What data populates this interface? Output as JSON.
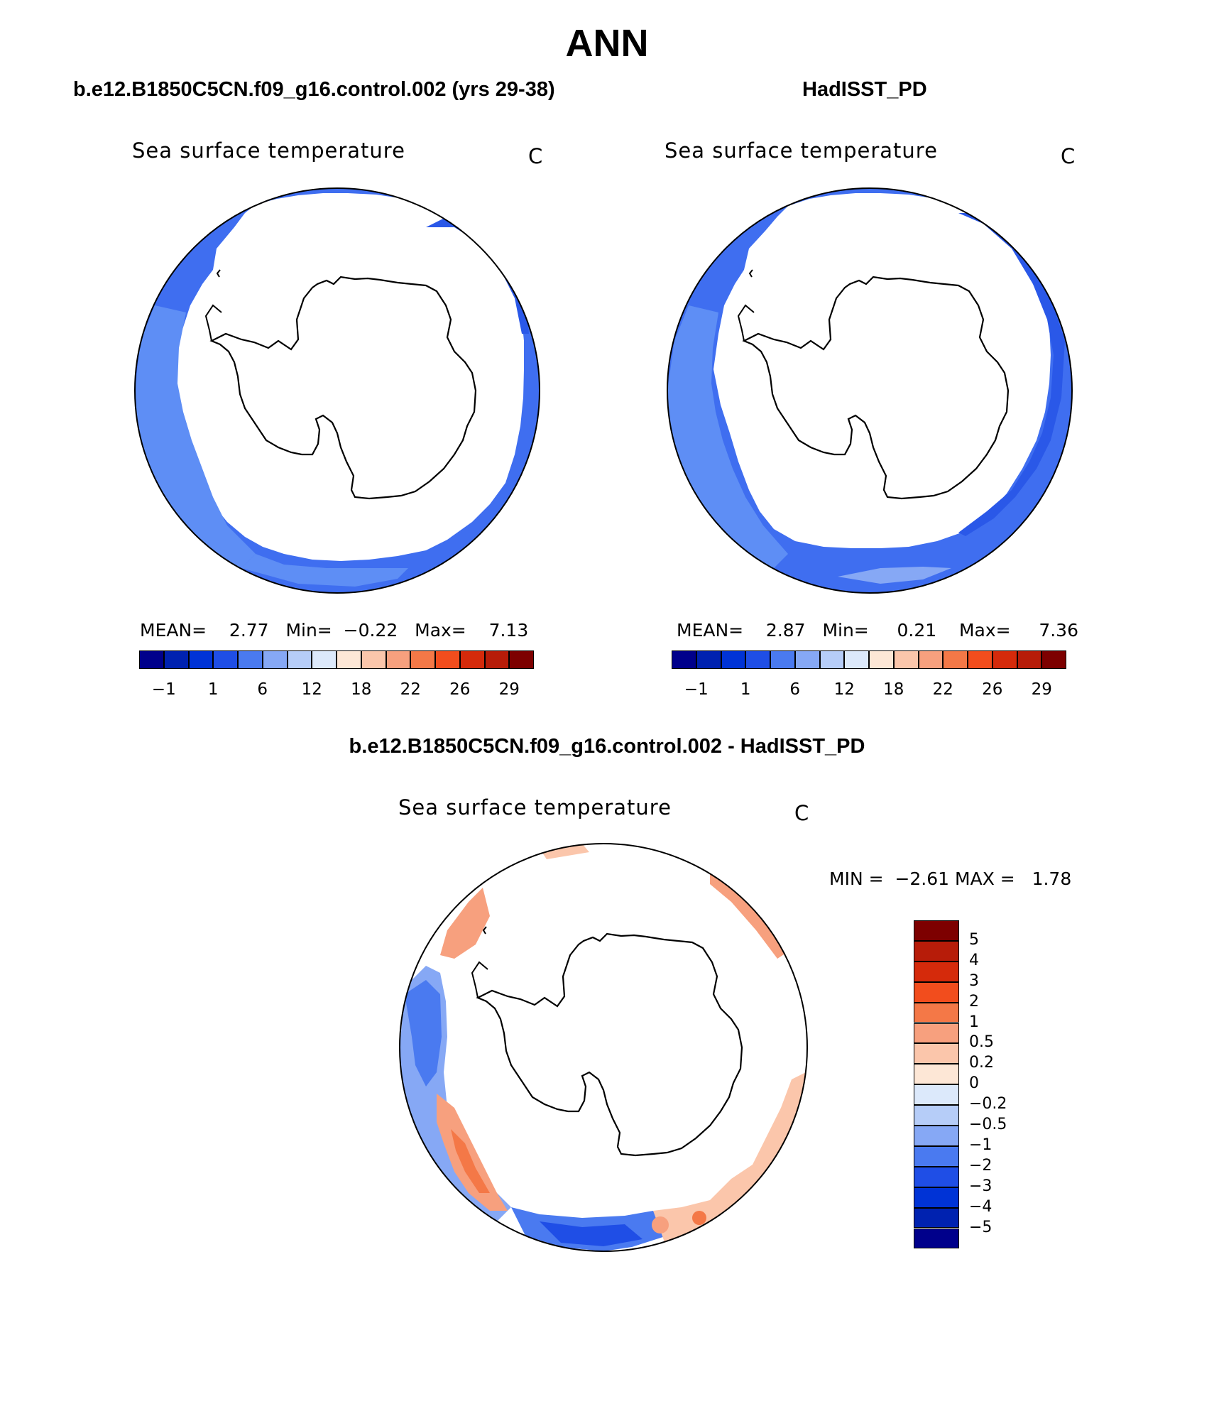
{
  "title": "ANN",
  "panels": [
    {
      "case_title": "b.e12.B1850C5CN.f09_g16.control.002 (yrs 29-38)",
      "var_title": "Sea surface temperature",
      "units": "C",
      "stats": {
        "mean_label": "MEAN=",
        "mean": "2.77",
        "min_label": "Min=",
        "min": "−0.22",
        "max_label": "Max=",
        "max": "7.13"
      }
    },
    {
      "case_title": "HadISST_PD",
      "var_title": "Sea surface temperature",
      "units": "C",
      "stats": {
        "mean_label": "MEAN=",
        "mean": "2.87",
        "min_label": "Min=",
        "min": "0.21",
        "max_label": "Max=",
        "max": "7.36"
      }
    }
  ],
  "abs_colorbar": {
    "colors": [
      "#00008b",
      "#0022b0",
      "#0033d6",
      "#1f4ee6",
      "#4a7af0",
      "#86a8f5",
      "#b6cdf8",
      "#dce9fb",
      "#fde7d6",
      "#fbc6ab",
      "#f7a07e",
      "#f47847",
      "#f24d1d",
      "#d52a0b",
      "#b71c09",
      "#7d0000"
    ],
    "labels": [
      "−1",
      "1",
      "6",
      "12",
      "18",
      "22",
      "26",
      "29"
    ]
  },
  "diff_panel": {
    "title": "b.e12.B1850C5CN.f09_g16.control.002 - HadISST_PD",
    "var_title": "Sea surface temperature",
    "units": "C",
    "stats": {
      "min_label": "MIN =",
      "min": "−2.61",
      "max_label": "MAX =",
      "max": "1.78"
    }
  },
  "diff_colorbar": {
    "colors": [
      "#7d0000",
      "#b71c09",
      "#d52a0b",
      "#f24d1d",
      "#f47847",
      "#f7a07e",
      "#fbc6ab",
      "#fde7d6",
      "#dce9fb",
      "#b6cdf8",
      "#86a8f5",
      "#4a7af0",
      "#1f4ee6",
      "#0033d6",
      "#0022b0",
      "#00008b"
    ],
    "labels": [
      "5",
      "4",
      "3",
      "2",
      "1",
      "0.5",
      "0.2",
      "0",
      "−0.2",
      "−0.5",
      "−1",
      "−2",
      "−3",
      "−4",
      "−5"
    ]
  }
}
